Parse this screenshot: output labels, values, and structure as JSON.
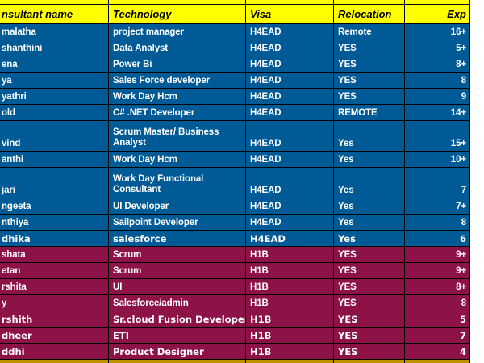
{
  "header": {
    "columns": [
      {
        "label": "nsultant name"
      },
      {
        "label": "Technology"
      },
      {
        "label": "Visa"
      },
      {
        "label": "Relocation"
      },
      {
        "label": "Exp"
      }
    ]
  },
  "table": {
    "rows": [
      {
        "name": "malatha",
        "technology": "project manager",
        "visa": "H4EAD",
        "relocation": "Remote",
        "exp": "16+",
        "group": "h4ead",
        "tall": false,
        "wide_font": false
      },
      {
        "name": "shanthini",
        "technology": "Data Analyst",
        "visa": "H4EAD",
        "relocation": "YES",
        "exp": "5+",
        "group": "h4ead",
        "tall": false,
        "wide_font": false
      },
      {
        "name": "ena",
        "technology": "Power Bi",
        "visa": "H4EAD",
        "relocation": "YES",
        "exp": "8+",
        "group": "h4ead",
        "tall": false,
        "wide_font": false
      },
      {
        "name": "ya",
        "technology": "Sales Force developer",
        "visa": "H4EAD",
        "relocation": "YES",
        "exp": "8",
        "group": "h4ead",
        "tall": false,
        "wide_font": false
      },
      {
        "name": "yathri",
        "technology": "Work Day Hcm",
        "visa": "H4EAD",
        "relocation": "YES",
        "exp": "9",
        "group": "h4ead",
        "tall": false,
        "wide_font": false
      },
      {
        "name": "old",
        "technology": "C# .NET Developer",
        "visa": "H4EAD",
        "relocation": "REMOTE",
        "exp": "14+",
        "group": "h4ead",
        "tall": false,
        "wide_font": false
      },
      {
        "name": "vind",
        "technology": "Scrum Master/ Business Analyst",
        "visa": "H4EAD",
        "relocation": "Yes",
        "exp": "15+",
        "group": "h4ead",
        "tall": true,
        "wide_font": false
      },
      {
        "name": "anthi",
        "technology": "Work Day Hcm",
        "visa": "H4EAD",
        "relocation": "Yes",
        "exp": "10+",
        "group": "h4ead",
        "tall": false,
        "wide_font": false
      },
      {
        "name": "jari",
        "technology": "Work Day Functional Consultant",
        "visa": "H4EAD",
        "relocation": "Yes",
        "exp": "7",
        "group": "h4ead",
        "tall": true,
        "wide_font": false
      },
      {
        "name": "ngeeta",
        "technology": "UI Developer",
        "visa": "H4EAD",
        "relocation": "Yes",
        "exp": "7+",
        "group": "h4ead",
        "tall": false,
        "wide_font": false
      },
      {
        "name": "nthiya",
        "technology": "Sailpoint Developer",
        "visa": "H4EAD",
        "relocation": "Yes",
        "exp": "8",
        "group": "h4ead",
        "tall": false,
        "wide_font": false
      },
      {
        "name": "dhika",
        "technology": "salesforce",
        "visa": "H4EAD",
        "relocation": "Yes",
        "exp": "6",
        "group": "h4ead",
        "tall": false,
        "wide_font": true
      },
      {
        "name": "shata",
        "technology": "Scrum",
        "visa": "H1B",
        "relocation": "YES",
        "exp": "9+",
        "group": "h1b",
        "tall": false,
        "wide_font": false
      },
      {
        "name": "etan",
        "technology": "Scrum",
        "visa": "H1B",
        "relocation": "YES",
        "exp": "9+",
        "group": "h1b",
        "tall": false,
        "wide_font": false
      },
      {
        "name": "rshita",
        "technology": "UI",
        "visa": "H1B",
        "relocation": "YES",
        "exp": "8+",
        "group": "h1b",
        "tall": false,
        "wide_font": false
      },
      {
        "name": "y",
        "technology": "Salesforce/admin",
        "visa": "H1B",
        "relocation": "YES",
        "exp": "8",
        "group": "h1b",
        "tall": false,
        "wide_font": false
      },
      {
        "name": "rshith",
        "technology": "Sr.cloud Fusion Developer",
        "visa": "H1B",
        "relocation": "YES",
        "exp": "5",
        "group": "h1b",
        "tall": false,
        "wide_font": true
      },
      {
        "name": "dheer",
        "technology": "ETI",
        "visa": "H1B",
        "relocation": "YES",
        "exp": "7",
        "group": "h1b",
        "tall": false,
        "wide_font": true
      },
      {
        "name": "ddhi",
        "technology": "Product Designer",
        "visa": "H1B",
        "relocation": "YES",
        "exp": "4",
        "group": "h1b",
        "tall": false,
        "wide_font": true
      }
    ]
  },
  "colors": {
    "blue": "#005A96",
    "maroon": "#8D1248",
    "header_yellow": "#FFFF00",
    "bottom_olive": "#BF9000",
    "grid": "#000000",
    "text_light": "#FFFFFF",
    "text_dark": "#000000"
  }
}
